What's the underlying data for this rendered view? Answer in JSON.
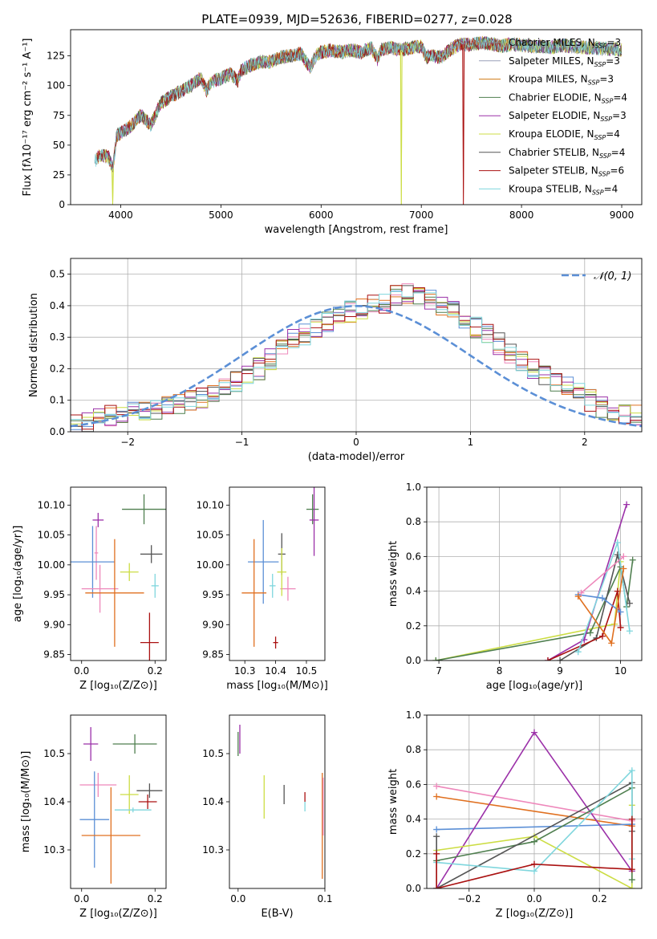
{
  "figure_title": "PLATE=0939, MJD=52636, FIBERID=0277, z=0.028",
  "colors": {
    "Chabrier MILES": "#888888",
    "Salpeter MILES": "#9aa0b8",
    "Kroupa MILES": "#d07a12",
    "Chabrier ELODIE": "#4f7f4f",
    "Salpeter ELODIE": "#9b30a8",
    "Kroupa ELODIE": "#ccdd44",
    "Chabrier STELIB": "#555555",
    "Salpeter STELIB": "#aa1111",
    "Kroupa STELIB": "#7fd6dd",
    "gauss": "#5b8fd6",
    "blue_model": "#5b8fd6",
    "pink_model": "#ee88bb",
    "orange_model": "#e07020"
  },
  "chart_data": [
    {
      "id": "spectrum",
      "type": "line",
      "title": "PLATE=0939, MJD=52636, FIBERID=0277, z=0.028",
      "xlabel": "wavelength [Angstrom, rest frame]",
      "ylabel": "Flux [fλ10⁻¹⁷ erg cm⁻² s⁻¹ A⁻¹]",
      "xlim": [
        3500,
        9200
      ],
      "ylim": [
        0,
        147
      ],
      "xticks": [
        4000,
        5000,
        6000,
        7000,
        8000,
        9000
      ],
      "yticks": [
        0,
        25,
        50,
        75,
        100,
        125
      ],
      "legend_position": "top-right",
      "legend": [
        {
          "label": "Chabrier MILES, N",
          "sub": "SSP",
          "eq": "=3",
          "color": "#888888"
        },
        {
          "label": "Salpeter MILES, N",
          "sub": "SSP",
          "eq": "=3",
          "color": "#9aa0b8"
        },
        {
          "label": "Kroupa MILES, N",
          "sub": "SSP",
          "eq": "=3",
          "color": "#d07a12"
        },
        {
          "label": "Chabrier ELODIE, N",
          "sub": "SSP",
          "eq": "=4",
          "color": "#4f7f4f"
        },
        {
          "label": "Salpeter ELODIE, N",
          "sub": "SSP",
          "eq": "=3",
          "color": "#9b30a8"
        },
        {
          "label": "Kroupa ELODIE, N",
          "sub": "SSP",
          "eq": "=4",
          "color": "#ccdd44"
        },
        {
          "label": "Chabrier STELIB, N",
          "sub": "SSP",
          "eq": "=4",
          "color": "#555555"
        },
        {
          "label": "Salpeter STELIB, N",
          "sub": "SSP",
          "eq": "=6",
          "color": "#aa1111"
        },
        {
          "label": "Kroupa STELIB, N",
          "sub": "SSP",
          "eq": "=4",
          "color": "#7fd6dd"
        }
      ],
      "envelope": {
        "x": [
          3740,
          3800,
          3880,
          3920,
          3960,
          4000,
          4100,
          4200,
          4300,
          4400,
          4500,
          4600,
          4700,
          4800,
          4860,
          4900,
          5000,
          5100,
          5170,
          5200,
          5300,
          5400,
          5500,
          5600,
          5700,
          5800,
          5890,
          5950,
          6000,
          6100,
          6200,
          6300,
          6400,
          6500,
          6563,
          6600,
          6700,
          6800,
          6900,
          7000,
          7050,
          7100,
          7200,
          7300,
          7400,
          7500,
          7600,
          7700,
          7800,
          7900,
          8000,
          8100,
          8200,
          8300,
          8400,
          8500,
          8600,
          8700,
          8800,
          8900,
          9000
        ],
        "y": [
          36,
          42,
          40,
          30,
          58,
          60,
          66,
          75,
          67,
          85,
          91,
          95,
          100,
          106,
          96,
          103,
          106,
          110,
          104,
          113,
          117,
          120,
          120,
          124,
          125,
          127,
          115,
          125,
          128,
          130,
          128,
          130,
          128,
          132,
          122,
          130,
          132,
          130,
          132,
          133,
          124,
          125,
          124,
          131,
          135,
          134,
          136,
          135,
          133,
          135,
          134,
          133,
          133,
          132,
          134,
          133,
          132,
          132,
          131,
          131,
          130
        ]
      },
      "dips": [
        {
          "series": "Kroupa ELODIE",
          "x": 6800,
          "y": 0
        },
        {
          "series": "Salpeter STELIB",
          "x": 7420,
          "y": 0
        },
        {
          "series": "Kroupa ELODIE",
          "x": 3920,
          "y": 0
        }
      ]
    },
    {
      "id": "residuals",
      "type": "histogram",
      "xlabel": "(data-model)/error",
      "ylabel": "Normed distribution",
      "xlim": [
        -2.5,
        2.5
      ],
      "ylim": [
        0,
        0.55
      ],
      "xticks": [
        -2,
        -1,
        0,
        1,
        2
      ],
      "yticks": [
        0.0,
        0.1,
        0.2,
        0.3,
        0.4,
        0.5
      ],
      "grid": true,
      "legend": [
        {
          "label": "𝒩(0, 1)",
          "style": "dashed",
          "color": "#5b8fd6"
        }
      ],
      "legend_position": "top-right",
      "bin_edges_start": -2.5,
      "bin_width": 0.1,
      "base_series": [
        0.02,
        0.03,
        0.04,
        0.05,
        0.05,
        0.06,
        0.06,
        0.07,
        0.08,
        0.09,
        0.1,
        0.11,
        0.12,
        0.14,
        0.16,
        0.18,
        0.2,
        0.23,
        0.26,
        0.29,
        0.31,
        0.33,
        0.35,
        0.37,
        0.38,
        0.39,
        0.4,
        0.41,
        0.43,
        0.44,
        0.44,
        0.42,
        0.4,
        0.38,
        0.36,
        0.33,
        0.31,
        0.28,
        0.25,
        0.22,
        0.2,
        0.18,
        0.16,
        0.14,
        0.12,
        0.1,
        0.08,
        0.07,
        0.06,
        0.05
      ],
      "series_colors": [
        "#5b8fd6",
        "#ee88bb",
        "#e07020",
        "#4f7f4f",
        "#9b30a8",
        "#ccdd44",
        "#555555",
        "#aa1111",
        "#7fd6dd"
      ]
    },
    {
      "id": "age_vs_Z",
      "type": "errorbar",
      "xlabel": "Z [log₁₀(Z/Z⊙)]",
      "ylabel": "age  [log₁₀(age/yr)]",
      "xlim": [
        -0.03,
        0.23
      ],
      "ylim": [
        9.84,
        10.13
      ],
      "xticks": [
        0.0,
        0.2
      ],
      "yticks": [
        9.85,
        9.9,
        9.95,
        10.0,
        10.05,
        10.1
      ],
      "points": [
        {
          "x": 0.17,
          "y": 10.093,
          "xerr": 0.06,
          "yerr": 0.025,
          "color": "#4f7f4f"
        },
        {
          "x": 0.045,
          "y": 10.075,
          "xerr": 0.015,
          "yerr": 0.012,
          "color": "#9b30a8"
        },
        {
          "x": 0.04,
          "y": 10.02,
          "xerr": 0.005,
          "yerr": 0.045,
          "color": "#ee88bb"
        },
        {
          "x": 0.03,
          "y": 10.005,
          "xerr": 0.06,
          "yerr": 0.06,
          "color": "#5b8fd6"
        },
        {
          "x": 0.19,
          "y": 10.018,
          "xerr": 0.03,
          "yerr": 0.015,
          "color": "#555555"
        },
        {
          "x": 0.13,
          "y": 9.988,
          "xerr": 0.025,
          "yerr": 0.015,
          "color": "#ccdd44"
        },
        {
          "x": 0.2,
          "y": 9.965,
          "xerr": 0.01,
          "yerr": 0.02,
          "color": "#7fd6dd"
        },
        {
          "x": 0.05,
          "y": 9.96,
          "xerr": 0.05,
          "yerr": 0.04,
          "color": "#ee88bb"
        },
        {
          "x": 0.09,
          "y": 9.953,
          "xerr": 0.08,
          "yerr": 0.09,
          "color": "#e07020"
        },
        {
          "x": 0.185,
          "y": 9.87,
          "xerr": 0.025,
          "yerr": 0.05,
          "color": "#aa1111"
        }
      ]
    },
    {
      "id": "age_vs_mass",
      "type": "errorbar",
      "xlabel": "mass [log₁₀(M/M⊙)]",
      "ylabel": "",
      "xlim": [
        10.25,
        10.56
      ],
      "ylim": [
        9.84,
        10.13
      ],
      "xticks": [
        10.3,
        10.4,
        10.5
      ],
      "yticks": [
        9.85,
        9.9,
        9.95,
        10.0,
        10.05,
        10.1
      ],
      "points": [
        {
          "x": 10.52,
          "y": 10.093,
          "xerr": 0.02,
          "yerr": 0.025,
          "color": "#4f7f4f"
        },
        {
          "x": 10.525,
          "y": 10.075,
          "xerr": 0.015,
          "yerr": 0.06,
          "color": "#9b30a8"
        },
        {
          "x": 10.44,
          "y": 9.96,
          "xerr": 0.025,
          "yerr": 0.02,
          "color": "#ee88bb"
        },
        {
          "x": 10.36,
          "y": 10.005,
          "xerr": 0.05,
          "yerr": 0.07,
          "color": "#5b8fd6"
        },
        {
          "x": 10.42,
          "y": 10.018,
          "xerr": 0.012,
          "yerr": 0.035,
          "color": "#555555"
        },
        {
          "x": 10.42,
          "y": 9.988,
          "xerr": 0.015,
          "yerr": 0.04,
          "color": "#ccdd44"
        },
        {
          "x": 10.39,
          "y": 9.965,
          "xerr": 0.01,
          "yerr": 0.02,
          "color": "#7fd6dd"
        },
        {
          "x": 10.33,
          "y": 9.953,
          "xerr": 0.04,
          "yerr": 0.09,
          "color": "#e07020"
        },
        {
          "x": 10.4,
          "y": 9.87,
          "xerr": 0.008,
          "yerr": 0.01,
          "color": "#aa1111"
        }
      ]
    },
    {
      "id": "weight_vs_age",
      "type": "line",
      "xlabel": "age  [log₁₀(age/yr)]",
      "ylabel": "mass weight",
      "xlim": [
        6.8,
        10.35
      ],
      "ylim": [
        0,
        1.0
      ],
      "xticks": [
        7,
        8,
        9,
        10
      ],
      "yticks": [
        0.0,
        0.2,
        0.4,
        0.6,
        0.8,
        1.0
      ],
      "grid": true,
      "series": [
        {
          "color": "#ccdd44",
          "x": [
            6.95,
            9.9,
            10.0
          ],
          "y": [
            0.0,
            0.21,
            0.57
          ]
        },
        {
          "color": "#4f7f4f",
          "x": [
            6.95,
            9.5,
            10.0,
            10.1,
            10.2
          ],
          "y": [
            0.0,
            0.16,
            0.54,
            0.31,
            0.58
          ]
        },
        {
          "color": "#555555",
          "x": [
            9.0,
            9.6,
            9.95,
            10.15
          ],
          "y": [
            0.0,
            0.13,
            0.61,
            0.33
          ]
        },
        {
          "color": "#9b30a8",
          "x": [
            8.8,
            9.4,
            10.1
          ],
          "y": [
            0.0,
            0.12,
            0.9
          ]
        },
        {
          "color": "#aa1111",
          "x": [
            8.8,
            9.7,
            9.95,
            10.0
          ],
          "y": [
            0.0,
            0.14,
            0.4,
            0.19
          ]
        },
        {
          "color": "#7fd6dd",
          "x": [
            9.3,
            9.95,
            10.15
          ],
          "y": [
            0.05,
            0.68,
            0.17
          ]
        },
        {
          "color": "#5b8fd6",
          "x": [
            9.3,
            9.7,
            10.0
          ],
          "y": [
            0.38,
            0.36,
            0.28
          ]
        },
        {
          "color": "#ee88bb",
          "x": [
            9.35,
            10.05
          ],
          "y": [
            0.39,
            0.6
          ]
        },
        {
          "color": "#e07020",
          "x": [
            9.3,
            9.85,
            10.05
          ],
          "y": [
            0.37,
            0.1,
            0.53
          ]
        }
      ]
    },
    {
      "id": "mass_vs_Z",
      "type": "errorbar",
      "xlabel": "Z [log₁₀(Z/Z⊙)]",
      "ylabel": "mass [log₁₀(M/M⊙)]",
      "xlim": [
        -0.03,
        0.23
      ],
      "ylim": [
        10.22,
        10.58
      ],
      "xticks": [
        0.0,
        0.2
      ],
      "yticks": [
        10.3,
        10.4,
        10.5
      ],
      "points": [
        {
          "x": 0.145,
          "y": 10.52,
          "xerr": 0.06,
          "yerr": 0.02,
          "color": "#4f7f4f"
        },
        {
          "x": 0.025,
          "y": 10.52,
          "xerr": 0.02,
          "yerr": 0.035,
          "color": "#9b30a8"
        },
        {
          "x": 0.045,
          "y": 10.435,
          "xerr": 0.05,
          "yerr": 0.025,
          "color": "#ee88bb"
        },
        {
          "x": 0.185,
          "y": 10.423,
          "xerr": 0.035,
          "yerr": 0.015,
          "color": "#555555"
        },
        {
          "x": 0.13,
          "y": 10.415,
          "xerr": 0.025,
          "yerr": 0.04,
          "color": "#ccdd44"
        },
        {
          "x": 0.18,
          "y": 10.4,
          "xerr": 0.025,
          "yerr": 0.015,
          "color": "#aa1111"
        },
        {
          "x": 0.14,
          "y": 10.383,
          "xerr": 0.05,
          "yerr": 0.005,
          "color": "#7fd6dd"
        },
        {
          "x": 0.035,
          "y": 10.363,
          "xerr": 0.04,
          "yerr": 0.1,
          "color": "#5b8fd6"
        },
        {
          "x": 0.08,
          "y": 10.33,
          "xerr": 0.08,
          "yerr": 0.1,
          "color": "#e07020"
        }
      ]
    },
    {
      "id": "mass_vs_ebv",
      "type": "errorbar",
      "xlabel": "E(B-V)",
      "ylabel": "",
      "xlim": [
        -0.01,
        0.1
      ],
      "ylim": [
        10.22,
        10.58
      ],
      "xticks": [
        0.0,
        0.1
      ],
      "yticks": [
        10.3,
        10.4,
        10.5
      ],
      "points": [
        {
          "x": 0.0,
          "y": 10.52,
          "xerr": 0.0,
          "yerr": 0.025,
          "color": "#4f7f4f"
        },
        {
          "x": 0.002,
          "y": 10.53,
          "xerr": 0.0,
          "yerr": 0.03,
          "color": "#9b30a8"
        },
        {
          "x": 0.03,
          "y": 10.41,
          "xerr": 0.0,
          "yerr": 0.045,
          "color": "#ccdd44"
        },
        {
          "x": 0.053,
          "y": 10.415,
          "xerr": 0.0,
          "yerr": 0.02,
          "color": "#555555"
        },
        {
          "x": 0.077,
          "y": 10.41,
          "xerr": 0.0,
          "yerr": 0.01,
          "color": "#aa1111"
        },
        {
          "x": 0.077,
          "y": 10.39,
          "xerr": 0.0,
          "yerr": 0.01,
          "color": "#7fd6dd"
        },
        {
          "x": 0.097,
          "y": 10.35,
          "xerr": 0.0,
          "yerr": 0.11,
          "color": "#e07020"
        },
        {
          "x": 0.098,
          "y": 10.39,
          "xerr": 0.0,
          "yerr": 0.06,
          "color": "#ee88bb"
        }
      ]
    },
    {
      "id": "weight_vs_Z",
      "type": "line",
      "xlabel": "Z [log₁₀(Z/Z⊙)]",
      "ylabel": "mass weight",
      "xlim": [
        -0.33,
        0.33
      ],
      "ylim": [
        0,
        1.0
      ],
      "xticks": [
        -0.2,
        0.0,
        0.2
      ],
      "yticks": [
        0.0,
        0.2,
        0.4,
        0.6,
        0.8,
        1.0
      ],
      "grid": true,
      "series": [
        {
          "color": "#ee88bb",
          "x": [
            -0.3,
            0.3
          ],
          "y": [
            0.59,
            0.39
          ]
        },
        {
          "color": "#e07020",
          "x": [
            -0.3,
            0.3
          ],
          "y": [
            0.53,
            0.36
          ]
        },
        {
          "color": "#5b8fd6",
          "x": [
            -0.3,
            0.3
          ],
          "y": [
            0.34,
            0.37
          ]
        },
        {
          "color": "#9b30a8",
          "x": [
            -0.3,
            0.0,
            0.3
          ],
          "y": [
            0.0,
            0.9,
            0.1
          ]
        },
        {
          "color": "#ccdd44",
          "x": [
            -0.3,
            0.0,
            0.3,
            0.3
          ],
          "y": [
            0.22,
            0.3,
            0.0,
            0.48
          ]
        },
        {
          "color": "#4f7f4f",
          "x": [
            -0.3,
            0.0,
            0.3,
            0.3
          ],
          "y": [
            0.16,
            0.27,
            0.58,
            0.05
          ]
        },
        {
          "color": "#555555",
          "x": [
            -0.3,
            -0.3,
            0.3,
            0.3
          ],
          "y": [
            0.3,
            0.0,
            0.61,
            0.33
          ]
        },
        {
          "color": "#7fd6dd",
          "x": [
            -0.3,
            0.0,
            0.3,
            0.3
          ],
          "y": [
            0.15,
            0.1,
            0.68,
            0.17
          ]
        },
        {
          "color": "#aa1111",
          "x": [
            -0.3,
            -0.3,
            0.0,
            0.3,
            0.3
          ],
          "y": [
            0.2,
            0.0,
            0.14,
            0.11,
            0.4
          ]
        }
      ]
    }
  ]
}
